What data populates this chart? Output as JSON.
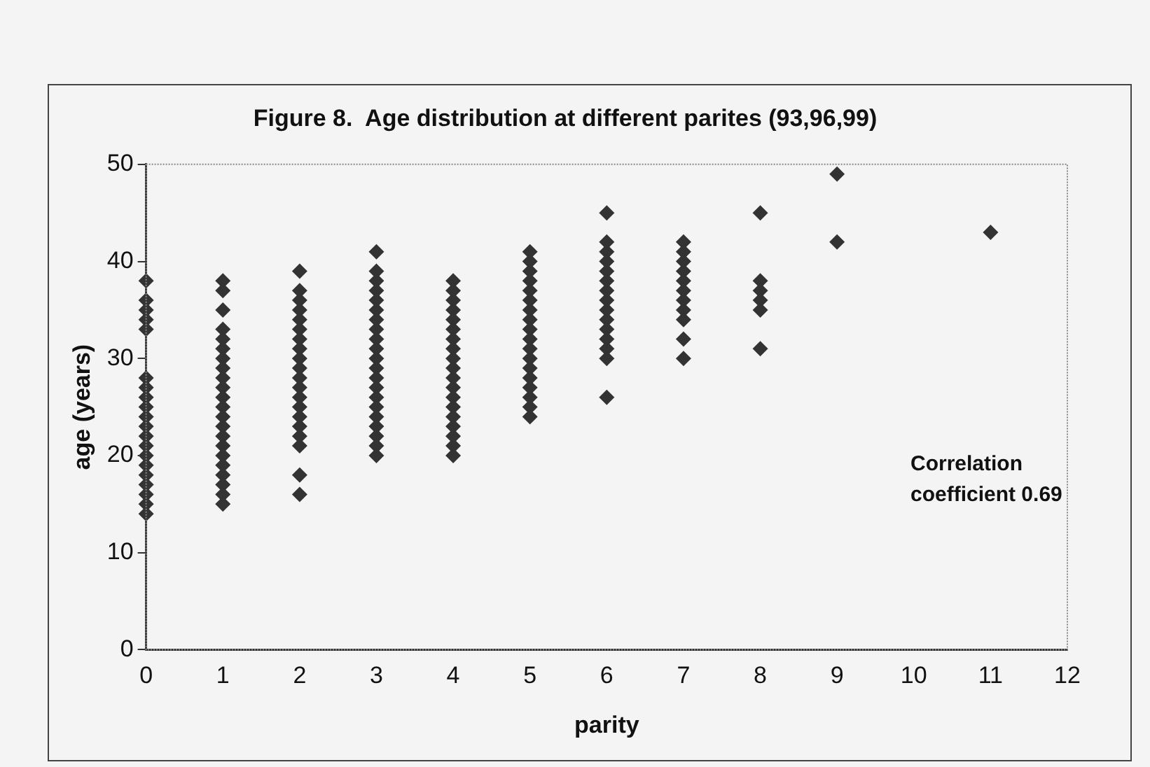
{
  "chart_data": {
    "type": "scatter",
    "title": "Figure 8.  Age distribution at different parites (93,96,99)",
    "xlabel": "parity",
    "ylabel": "age (years)",
    "annotations": [
      "Correlation coefficient  0.69"
    ],
    "xlim": [
      0,
      12
    ],
    "xticks": [
      0,
      1,
      2,
      3,
      4,
      5,
      6,
      7,
      8,
      9,
      10,
      11,
      12
    ],
    "ylim": [
      0,
      50
    ],
    "yticks": [
      0,
      10,
      20,
      30,
      40,
      50
    ],
    "grid": false,
    "legend": false,
    "marker": "diamond",
    "color": "#333333",
    "x": [
      0,
      0,
      0,
      0,
      0,
      0,
      0,
      0,
      0,
      0,
      0,
      0,
      0,
      0,
      0,
      0,
      0,
      0,
      0,
      0,
      1,
      1,
      1,
      1,
      1,
      1,
      1,
      1,
      1,
      1,
      1,
      1,
      1,
      1,
      1,
      1,
      1,
      1,
      1,
      1,
      1,
      1,
      2,
      2,
      2,
      2,
      2,
      2,
      2,
      2,
      2,
      2,
      2,
      2,
      2,
      2,
      2,
      2,
      2,
      2,
      2,
      2,
      3,
      3,
      3,
      3,
      3,
      3,
      3,
      3,
      3,
      3,
      3,
      3,
      3,
      3,
      3,
      3,
      3,
      3,
      3,
      3,
      3,
      4,
      4,
      4,
      4,
      4,
      4,
      4,
      4,
      4,
      4,
      4,
      4,
      4,
      4,
      4,
      4,
      4,
      4,
      4,
      5,
      5,
      5,
      5,
      5,
      5,
      5,
      5,
      5,
      5,
      5,
      5,
      5,
      5,
      5,
      5,
      5,
      5,
      6,
      6,
      6,
      6,
      6,
      6,
      6,
      6,
      6,
      6,
      6,
      6,
      6,
      6,
      6,
      7,
      7,
      7,
      7,
      7,
      7,
      7,
      7,
      7,
      7,
      7,
      8,
      8,
      8,
      8,
      8,
      8,
      9,
      9,
      11
    ],
    "values": [
      38,
      36,
      35,
      34,
      33,
      28,
      27,
      26,
      25,
      24,
      23,
      22,
      21,
      20,
      19,
      18,
      17,
      16,
      15,
      14,
      38,
      37,
      35,
      33,
      32,
      31,
      30,
      29,
      28,
      27,
      26,
      25,
      24,
      23,
      22,
      21,
      20,
      19,
      18,
      17,
      16,
      15,
      39,
      37,
      36,
      35,
      34,
      33,
      32,
      31,
      30,
      29,
      28,
      27,
      26,
      25,
      24,
      23,
      22,
      21,
      18,
      16,
      41,
      39,
      38,
      37,
      36,
      35,
      34,
      33,
      32,
      31,
      30,
      29,
      28,
      27,
      26,
      25,
      24,
      23,
      22,
      21,
      20,
      38,
      37,
      36,
      35,
      34,
      33,
      32,
      31,
      30,
      29,
      28,
      27,
      26,
      25,
      24,
      23,
      22,
      21,
      20,
      41,
      40,
      39,
      38,
      37,
      36,
      35,
      34,
      33,
      32,
      31,
      30,
      29,
      28,
      27,
      26,
      25,
      24,
      45,
      42,
      41,
      40,
      39,
      38,
      37,
      36,
      35,
      34,
      33,
      32,
      31,
      30,
      26,
      42,
      41,
      40,
      39,
      38,
      37,
      36,
      35,
      34,
      32,
      30,
      45,
      38,
      37,
      36,
      35,
      31,
      49,
      42,
      43
    ]
  }
}
